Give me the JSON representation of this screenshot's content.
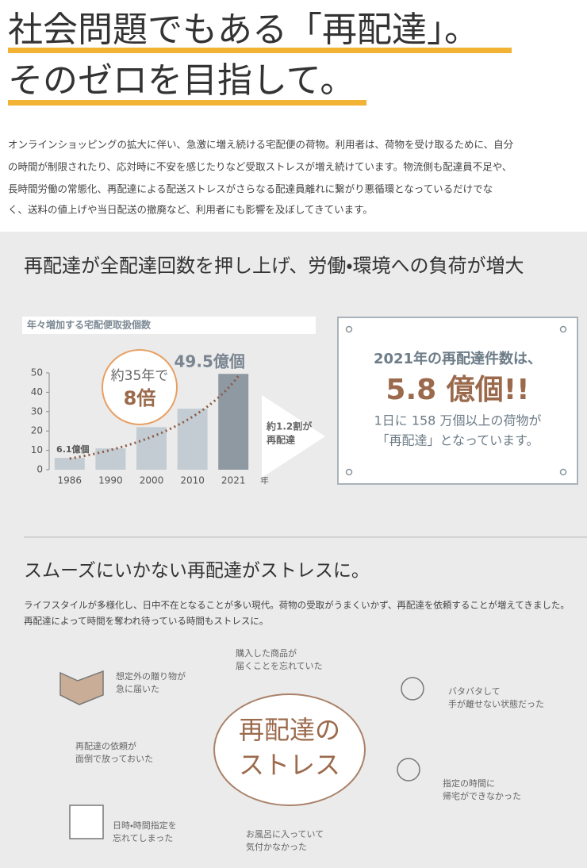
{
  "header": {
    "lines": [
      "社会問題でもある「再配達」。",
      "そのゼロを目指して。"
    ]
  },
  "intro": [
    "オンラインショッピングの拡大に伴い、急激に増え続ける宅配便の荷物。利用者は、荷物を受け取るために、自分",
    "の時間が制限されたり、応対時に不安を感じたりなど受取ストレスが増え続けています。物流側も配達員不足や、",
    "長時間労働の常態化、再配達による配送ストレスがさらなる配達員離れに繋がり悪循環となっているだけでな",
    "く、送料の値上げや当日配送の撤廃など、利用者にも影響を及ぼしてきています。"
  ],
  "section1": {
    "title": "再配達が全配達回数を押し上げ、労働・環境への負荷が増大",
    "chart_data": {
      "type": "bar",
      "title": "年々増加する宅配便取扱個数",
      "categories": [
        "1986",
        "1990",
        "2000",
        "2010",
        "2021"
      ],
      "x_unit": "年",
      "values": [
        6.1,
        11,
        22,
        31.5,
        49.5
      ],
      "value_labels": [
        "6.1億個",
        null,
        null,
        null,
        "49.5億個"
      ],
      "colors": [
        "#c3ccd2",
        "#c3ccd2",
        "#c3ccd2",
        "#c3ccd2",
        "#8e99a2"
      ],
      "ylim": [
        0,
        50
      ],
      "yticks": [
        0,
        10,
        20,
        30,
        40,
        50
      ],
      "callout": [
        "約35年で",
        "8倍"
      ]
    },
    "arrow_text": [
      "約1.2割が",
      "再配達"
    ],
    "box": [
      "2021年の再配達件数は、",
      "5.8 億個!!",
      "1日に 158 万個以上の荷物が",
      "「再配達」となっています。"
    ]
  },
  "section2": {
    "title": "スムーズにいかない再配達がストレスに。",
    "text": [
      "ライフスタイルが多様化し、日中不在となることが多い現代。荷物の受取がうまくいかず、再配達を依頼することが増えてきました。",
      "再配達によって時間を奪われ待っている時間もストレスに。"
    ],
    "center": [
      "再配達の",
      "ストレス"
    ],
    "items": [
      [
        "想定外の贈り物が",
        "急に届いた"
      ],
      [
        "購入した商品が",
        "届くことを忘れていた"
      ],
      [
        "バタバタして",
        "手が離せない状態だった"
      ],
      [
        "再配達の依頼が",
        "面倒で放っておいた"
      ],
      [
        "指定の時間に",
        "帰宅ができなかった"
      ],
      [
        "日時・時間指定を",
        "忘れてしまった"
      ],
      [
        "お風呂に入っていて",
        "気付かなかった"
      ]
    ]
  }
}
